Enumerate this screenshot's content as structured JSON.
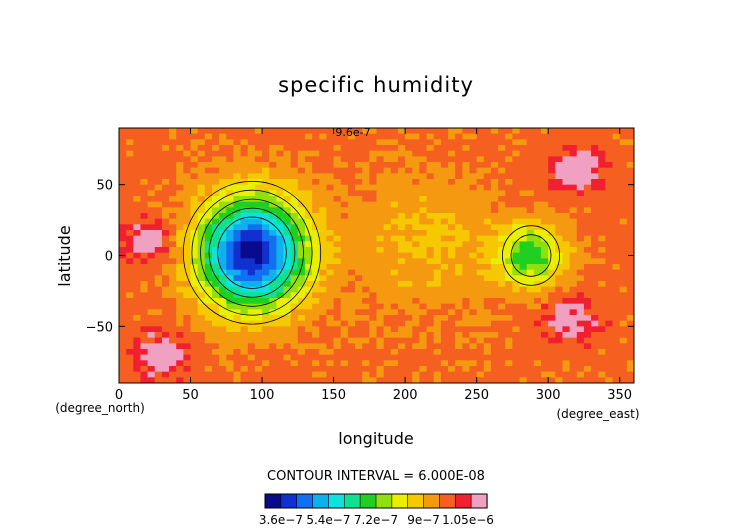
{
  "chart_data": {
    "type": "heatmap",
    "title": "specific humidity",
    "xlabel": "longitude",
    "ylabel": "latitude",
    "x_unit": "(degree_east)",
    "y_unit": "(degree_north)",
    "xlim": [
      0,
      360
    ],
    "ylim": [
      -90,
      90
    ],
    "x_ticks": [
      0,
      50,
      100,
      150,
      200,
      250,
      300,
      350
    ],
    "y_ticks": [
      -50,
      0,
      50
    ],
    "contour_interval_text": "CONTOUR INTERVAL = 6.000E-08",
    "contour_label": "9.6e-7",
    "field_features": [
      {
        "name": "dry center",
        "lon": 93,
        "lat": 2,
        "min_value": 3.6e-07
      },
      {
        "name": "dry center",
        "lon": 288,
        "lat": 0,
        "min_value": 7.2e-07
      },
      {
        "name": "moist patch",
        "lon": 20,
        "lat": 10,
        "max_value": 1.05e-06
      },
      {
        "name": "moist patch",
        "lon": 315,
        "lat": -45,
        "max_value": 1.05e-06
      },
      {
        "name": "moist patch",
        "lon": 320,
        "lat": 60,
        "max_value": 1.05e-06
      },
      {
        "name": "moist patch",
        "lon": 30,
        "lat": -70,
        "max_value": 1.05e-06
      }
    ],
    "colorbar": {
      "levels": [
        3.6e-07,
        4.2e-07,
        4.8e-07,
        5.4e-07,
        6e-07,
        6.6e-07,
        7.2e-07,
        7.8e-07,
        8.4e-07,
        9e-07,
        9.6e-07,
        1.02e-06,
        1.05e-06
      ],
      "colors": [
        "#0a0a8c",
        "#1030d0",
        "#1070f0",
        "#10b0f0",
        "#10e0e0",
        "#10e090",
        "#20d020",
        "#90e010",
        "#e8f000",
        "#f5c800",
        "#f59a10",
        "#f56020",
        "#f02030",
        "#f0a0c0"
      ],
      "tick_labels": [
        "3.6e-7",
        "5.4e-7",
        "7.2e-7",
        "9e-7",
        "1.05e-6"
      ],
      "tick_values": [
        3.6e-07,
        5.4e-07,
        7.2e-07,
        9e-07,
        1.05e-06
      ]
    }
  }
}
